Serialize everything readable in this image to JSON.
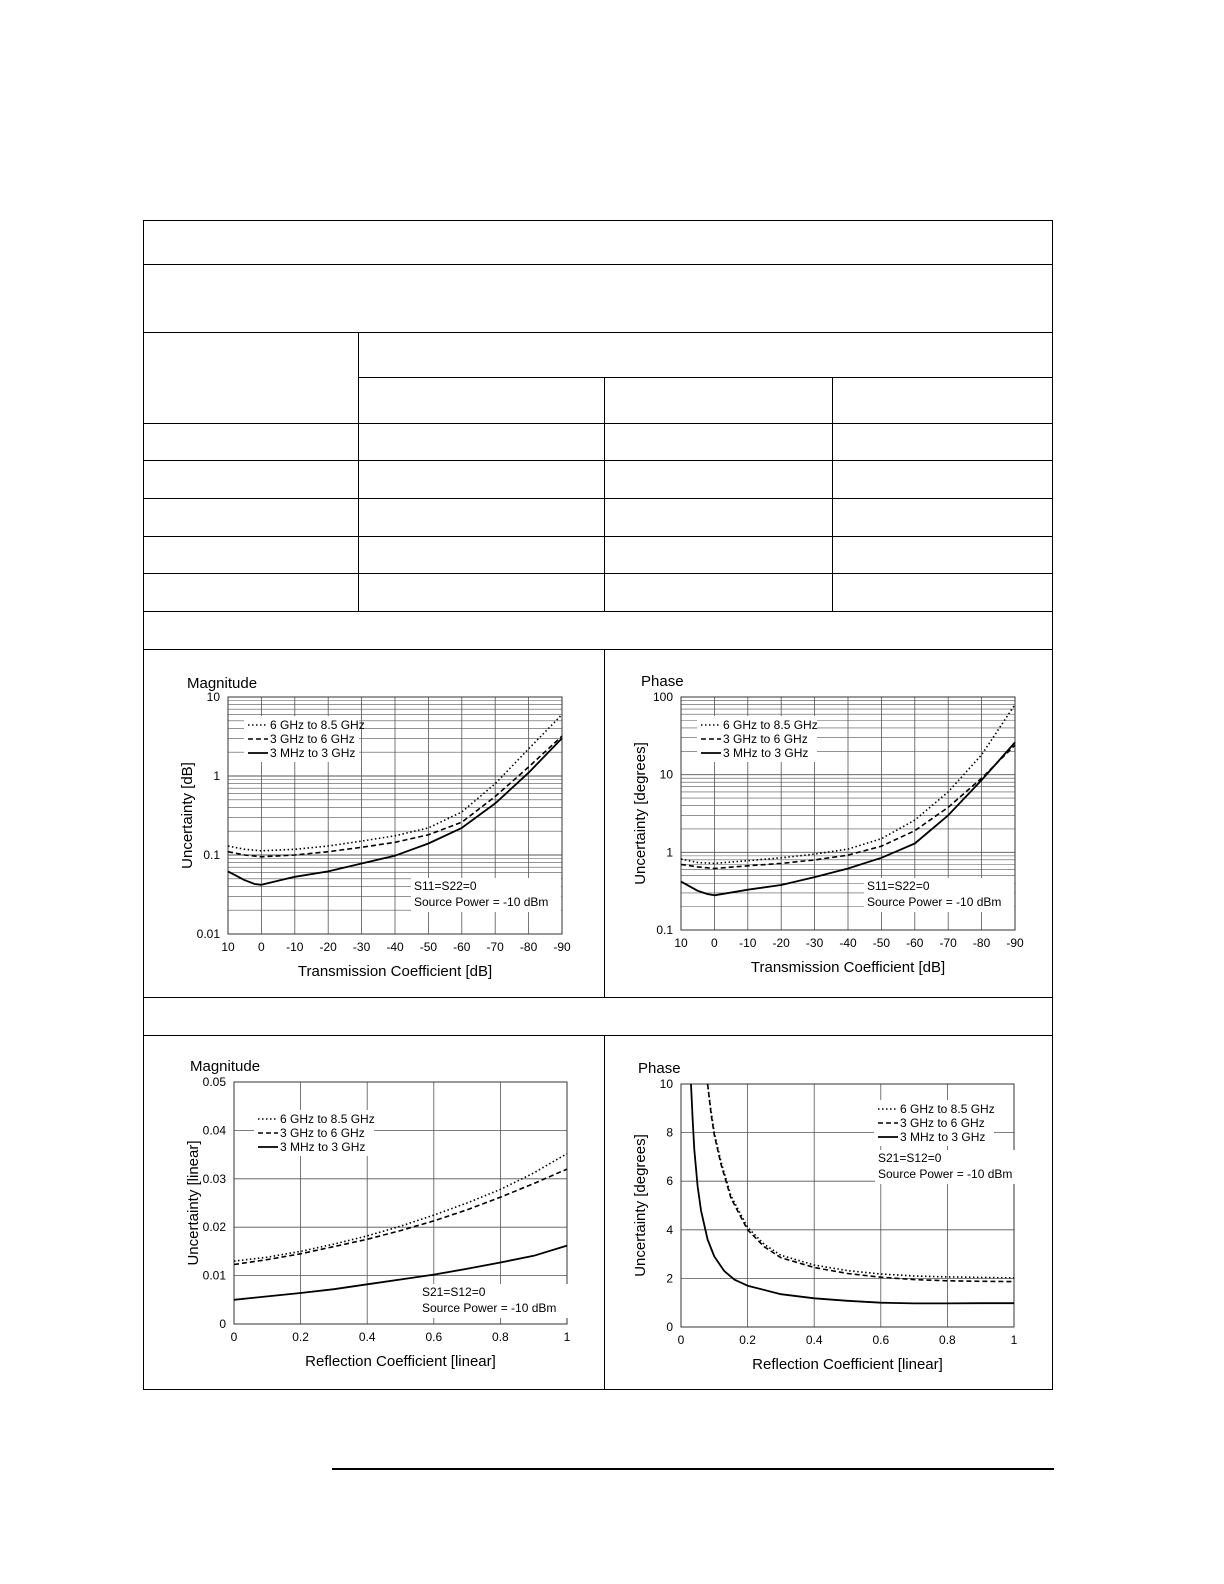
{
  "colors": {
    "line": "#000000",
    "grid": "#555555",
    "background": "#ffffff"
  },
  "chart_data": [
    {
      "id": "trans-mag",
      "type": "line",
      "title": "Magnitude",
      "xlabel": "Transmission Coefficient [dB]",
      "ylabel": "Uncertainty [dB]",
      "yscale": "log",
      "xlim": [
        10,
        -90
      ],
      "ylim": [
        0.01,
        10
      ],
      "xticks": [
        "10",
        "0",
        "-10",
        "-20",
        "-30",
        "-40",
        "-50",
        "-60",
        "-70",
        "-80",
        "-90"
      ],
      "yticks": [
        "0.01",
        "0.1",
        "1",
        "10"
      ],
      "legend_position": "top-left",
      "annotations": [
        "S11=S22=0",
        "Source Power = -10 dBm"
      ],
      "series": [
        {
          "name": "6 GHz to 8.5 GHz",
          "style": "dotted",
          "x": [
            10,
            5,
            0,
            -10,
            -20,
            -30,
            -40,
            -50,
            -60,
            -70,
            -80,
            -90
          ],
          "y": [
            0.13,
            0.118,
            0.113,
            0.118,
            0.13,
            0.15,
            0.175,
            0.22,
            0.35,
            0.8,
            2.2,
            6
          ]
        },
        {
          "name": "3 GHz to 6 GHz",
          "style": "dashed",
          "x": [
            10,
            5,
            0,
            -10,
            -20,
            -30,
            -40,
            -50,
            -60,
            -70,
            -80,
            -90
          ],
          "y": [
            0.11,
            0.1,
            0.095,
            0.1,
            0.11,
            0.125,
            0.145,
            0.18,
            0.26,
            0.55,
            1.3,
            3.2
          ]
        },
        {
          "name": "3 MHz to 3 GHz",
          "style": "solid",
          "x": [
            10,
            5,
            2,
            0,
            -10,
            -20,
            -30,
            -40,
            -50,
            -60,
            -70,
            -80,
            -90
          ],
          "y": [
            0.062,
            0.048,
            0.043,
            0.042,
            0.053,
            0.062,
            0.078,
            0.098,
            0.14,
            0.22,
            0.45,
            1.1,
            3.0
          ]
        }
      ]
    },
    {
      "id": "trans-phase",
      "type": "line",
      "title": "Phase",
      "xlabel": "Transmission Coefficient [dB]",
      "ylabel": "Uncertainty [degrees]",
      "yscale": "log",
      "xlim": [
        10,
        -90
      ],
      "ylim": [
        0.1,
        100
      ],
      "xticks": [
        "10",
        "0",
        "-10",
        "-20",
        "-30",
        "-40",
        "-50",
        "-60",
        "-70",
        "-80",
        "-90"
      ],
      "yticks": [
        "0.1",
        "1",
        "10",
        "100"
      ],
      "legend_position": "top-left",
      "annotations": [
        "S11=S22=0",
        "Source Power = -10 dBm"
      ],
      "series": [
        {
          "name": "6 GHz to 8.5 GHz",
          "style": "dotted",
          "x": [
            10,
            5,
            0,
            -10,
            -20,
            -30,
            -40,
            -50,
            -60,
            -70,
            -80,
            -90
          ],
          "y": [
            0.82,
            0.74,
            0.72,
            0.78,
            0.85,
            0.95,
            1.1,
            1.5,
            2.6,
            6,
            18,
            80
          ]
        },
        {
          "name": "3 GHz to 6 GHz",
          "style": "dashed",
          "x": [
            10,
            5,
            0,
            -10,
            -20,
            -30,
            -40,
            -50,
            -60,
            -70,
            -80,
            -90
          ],
          "y": [
            0.7,
            0.65,
            0.62,
            0.67,
            0.72,
            0.8,
            0.92,
            1.2,
            1.9,
            3.8,
            9,
            24
          ]
        },
        {
          "name": "3 MHz to 3 GHz",
          "style": "solid",
          "x": [
            10,
            5,
            2,
            0,
            -10,
            -20,
            -30,
            -40,
            -50,
            -60,
            -70,
            -80,
            -90
          ],
          "y": [
            0.42,
            0.32,
            0.29,
            0.28,
            0.33,
            0.38,
            0.48,
            0.62,
            0.85,
            1.3,
            3.0,
            8.5,
            26
          ]
        }
      ]
    },
    {
      "id": "refl-mag",
      "type": "line",
      "title": "Magnitude",
      "xlabel": "Reflection Coefficient [linear]",
      "ylabel": "Uncertainty [linear]",
      "yscale": "linear",
      "xlim": [
        0,
        1
      ],
      "ylim": [
        0,
        0.05
      ],
      "xticks": [
        "0",
        "0.2",
        "0.4",
        "0.6",
        "0.8",
        "1"
      ],
      "yticks": [
        "0",
        "0.01",
        "0.02",
        "0.03",
        "0.04",
        "0.05"
      ],
      "legend_position": "top-left",
      "annotations": [
        "S21=S12=0",
        "Source Power = -10 dBm"
      ],
      "series": [
        {
          "name": "6 GHz to 8.5 GHz",
          "style": "dotted",
          "x": [
            0,
            0.1,
            0.2,
            0.3,
            0.4,
            0.5,
            0.6,
            0.7,
            0.8,
            0.9,
            1.0
          ],
          "y": [
            0.013,
            0.0138,
            0.015,
            0.0165,
            0.0182,
            0.0202,
            0.0225,
            0.025,
            0.0278,
            0.0312,
            0.0352
          ]
        },
        {
          "name": "3 GHz to 6 GHz",
          "style": "dashed",
          "x": [
            0,
            0.1,
            0.2,
            0.3,
            0.4,
            0.5,
            0.6,
            0.7,
            0.8,
            0.9,
            1.0
          ],
          "y": [
            0.0123,
            0.0133,
            0.0145,
            0.016,
            0.0175,
            0.0193,
            0.0213,
            0.0236,
            0.0262,
            0.029,
            0.032
          ]
        },
        {
          "name": "3 MHz to 3 GHz",
          "style": "solid",
          "x": [
            0,
            0.1,
            0.2,
            0.3,
            0.4,
            0.5,
            0.6,
            0.7,
            0.8,
            0.9,
            1.0
          ],
          "y": [
            0.005,
            0.0057,
            0.0064,
            0.0072,
            0.0082,
            0.0092,
            0.0102,
            0.0114,
            0.0127,
            0.0141,
            0.0162
          ]
        }
      ]
    },
    {
      "id": "refl-phase",
      "type": "line",
      "title": "Phase",
      "xlabel": "Reflection Coefficient [linear]",
      "ylabel": "Uncertainty [degrees]",
      "yscale": "linear",
      "xlim": [
        0,
        1
      ],
      "ylim": [
        0,
        10
      ],
      "xticks": [
        "0",
        "0.2",
        "0.4",
        "0.6",
        "0.8",
        "1"
      ],
      "yticks": [
        "0",
        "2",
        "4",
        "6",
        "8",
        "10"
      ],
      "legend_position": "top-right",
      "annotations": [
        "S21=S12=0",
        "Source Power = -10 dBm"
      ],
      "series": [
        {
          "name": "6 GHz to 8.5 GHz",
          "style": "dotted",
          "x": [
            0.08,
            0.09,
            0.1,
            0.12,
            0.15,
            0.2,
            0.25,
            0.3,
            0.4,
            0.5,
            0.6,
            0.7,
            0.8,
            0.9,
            1.0
          ],
          "y": [
            10,
            8.9,
            8.0,
            6.8,
            5.4,
            4.1,
            3.4,
            2.95,
            2.55,
            2.32,
            2.18,
            2.1,
            2.06,
            2.04,
            2.02
          ]
        },
        {
          "name": "3 GHz to 6 GHz",
          "style": "dashed",
          "x": [
            0.08,
            0.09,
            0.1,
            0.12,
            0.15,
            0.2,
            0.25,
            0.3,
            0.4,
            0.5,
            0.6,
            0.7,
            0.8,
            0.9,
            1.0
          ],
          "y": [
            10,
            8.8,
            7.9,
            6.7,
            5.3,
            4.0,
            3.3,
            2.85,
            2.45,
            2.2,
            2.05,
            1.95,
            1.9,
            1.88,
            1.87
          ]
        },
        {
          "name": "3 MHz to 3 GHz",
          "style": "solid",
          "x": [
            0.03,
            0.035,
            0.04,
            0.05,
            0.06,
            0.08,
            0.1,
            0.13,
            0.16,
            0.2,
            0.3,
            0.4,
            0.5,
            0.6,
            0.7,
            0.8,
            0.9,
            1.0
          ],
          "y": [
            10,
            8.5,
            7.3,
            5.8,
            4.8,
            3.6,
            2.9,
            2.3,
            1.95,
            1.7,
            1.35,
            1.18,
            1.08,
            1.0,
            0.97,
            0.97,
            0.98,
            0.98
          ]
        }
      ]
    }
  ]
}
